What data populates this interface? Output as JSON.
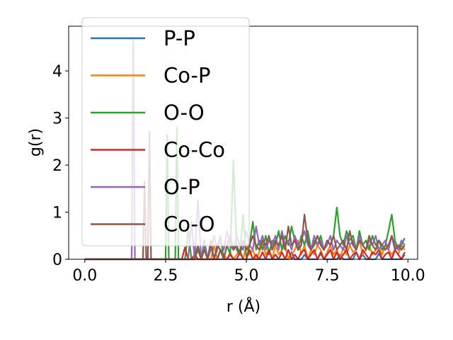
{
  "chart_data": {
    "type": "line",
    "xlabel": "r (Å)",
    "ylabel": "g(r)",
    "xlim": [
      -0.5,
      10.3
    ],
    "ylim": [
      0,
      4.95
    ],
    "x_ticks": [
      0.0,
      2.5,
      5.0,
      7.5,
      10.0
    ],
    "x_tick_labels": [
      "0.0",
      "2.5",
      "5.0",
      "7.5",
      "10.0"
    ],
    "y_ticks": [
      0,
      1,
      2,
      3,
      4
    ],
    "y_tick_labels": [
      "0",
      "1",
      "2",
      "3",
      "4"
    ],
    "grid": false,
    "legend_position": "upper-left",
    "x": [
      0.0,
      0.5,
      1.0,
      1.45,
      1.5,
      1.55,
      1.8,
      1.85,
      1.9,
      1.95,
      2.0,
      2.05,
      2.1,
      2.5,
      2.55,
      2.6,
      2.8,
      2.85,
      2.9,
      3.0,
      3.1,
      3.2,
      3.3,
      3.4,
      3.5,
      3.6,
      3.7,
      3.8,
      3.9,
      4.0,
      4.1,
      4.2,
      4.3,
      4.4,
      4.5,
      4.6,
      4.7,
      4.8,
      4.9,
      5.0,
      5.1,
      5.2,
      5.3,
      5.4,
      5.5,
      5.6,
      5.7,
      5.8,
      5.9,
      6.0,
      6.1,
      6.2,
      6.3,
      6.4,
      6.5,
      6.6,
      6.7,
      6.8,
      6.9,
      7.0,
      7.1,
      7.2,
      7.3,
      7.4,
      7.5,
      7.6,
      7.7,
      7.8,
      7.9,
      8.0,
      8.1,
      8.2,
      8.3,
      8.4,
      8.5,
      8.6,
      8.7,
      8.8,
      8.9,
      9.0,
      9.1,
      9.2,
      9.3,
      9.4,
      9.5,
      9.6,
      9.7,
      9.8,
      9.9
    ],
    "series": [
      {
        "name": "P-P",
        "color": "#1f77b4",
        "values": [
          0,
          0,
          0,
          0,
          0,
          0,
          0,
          0,
          0,
          0,
          0,
          0,
          0,
          0,
          0,
          0,
          0,
          0,
          0,
          0,
          0,
          0,
          0,
          0,
          0,
          0,
          0,
          0,
          0,
          0,
          0,
          0,
          0,
          0,
          0,
          0,
          0,
          0,
          0,
          0,
          0,
          0,
          0,
          0,
          0,
          0,
          0,
          0,
          0,
          0,
          0,
          0,
          0,
          0.15,
          0,
          0,
          0,
          0.1,
          0,
          0,
          0,
          0,
          0.12,
          0,
          0,
          0,
          0,
          0,
          0.1,
          0,
          0,
          0,
          0,
          0.15,
          0,
          0.1,
          0,
          0,
          0,
          0,
          0.12,
          0,
          0,
          0,
          0,
          0,
          0,
          0,
          0.1
        ]
      },
      {
        "name": "Co-P",
        "color": "#ff7f0e",
        "values": [
          0,
          0,
          0,
          0,
          0,
          0,
          0,
          0,
          0,
          0,
          0,
          0,
          0,
          0,
          0,
          0,
          0,
          0,
          0,
          0,
          0,
          0,
          0,
          0,
          0,
          0,
          0,
          0,
          0,
          0.3,
          0,
          0.2,
          0.1,
          0,
          0.15,
          0,
          0.1,
          0.2,
          0,
          0.3,
          0.1,
          0.2,
          0,
          0.15,
          0.35,
          0.1,
          0.2,
          0,
          0.3,
          0.1,
          0.2,
          0.3,
          0,
          0.1,
          0.2,
          0.4,
          0.1,
          0.3,
          0,
          0.2,
          0.1,
          0.3,
          0.2,
          0,
          0.15,
          0.3,
          0.1,
          0.2,
          0,
          0.25,
          0.1,
          0.3,
          0.15,
          0.2,
          0.4,
          0.1,
          0.2,
          0.3,
          0.1,
          0.2,
          0.25,
          0.1,
          0.3,
          0.2,
          0.1,
          0.2,
          0.1,
          0.3,
          0.2
        ]
      },
      {
        "name": "O-O",
        "color": "#2ca02c",
        "values": [
          0,
          0,
          0,
          0,
          0,
          0,
          0,
          0,
          0,
          0,
          0,
          0,
          0,
          0,
          2.65,
          0,
          0,
          2.8,
          0,
          0,
          0,
          0.6,
          0,
          0,
          0.2,
          0,
          0.4,
          0,
          0.3,
          0,
          0.2,
          0.5,
          0,
          0.3,
          0.1,
          2.1,
          0.2,
          0.1,
          0.95,
          0,
          0.3,
          0.8,
          0.2,
          0.4,
          0.2,
          0.5,
          0.1,
          0.4,
          0.3,
          0.6,
          0.2,
          0.5,
          0.3,
          0.7,
          0.4,
          0.2,
          0.5,
          0.3,
          0.6,
          0.2,
          0.4,
          0.3,
          0.5,
          0.2,
          0.4,
          0.3,
          0.5,
          1.1,
          0.5,
          0.3,
          0.6,
          0.4,
          0.5,
          0.2,
          0.6,
          0.3,
          0.4,
          0.2,
          0.5,
          0.3,
          0.4,
          0.2,
          0.3,
          0.6,
          0.95,
          0.4,
          0.2,
          0.3,
          0.45
        ]
      },
      {
        "name": "Co-Co",
        "color": "#d62728",
        "values": [
          0,
          0,
          0,
          0,
          0,
          0,
          0,
          0,
          0,
          0,
          0,
          0,
          0,
          0,
          0,
          0,
          0,
          0,
          0,
          0,
          0.25,
          0,
          0,
          0.1,
          0,
          0,
          0,
          0,
          0,
          0,
          0,
          0.2,
          0,
          0,
          0.1,
          0,
          0,
          0.15,
          0,
          0,
          0.2,
          0,
          0.1,
          0,
          0.15,
          0,
          0.2,
          0,
          0.1,
          0,
          0.15,
          0,
          0.2,
          0,
          0.1,
          0,
          0.15,
          0.2,
          0,
          0.1,
          0.2,
          0,
          0.15,
          0,
          0.1,
          0.2,
          0,
          0.15,
          0,
          0.1,
          0.2,
          0,
          0.1,
          0.15,
          0,
          0.2,
          0.1,
          0,
          0.15,
          0.1,
          0.2,
          0,
          0.1,
          0.15,
          0,
          0.2,
          0.1,
          0,
          0.15
        ]
      },
      {
        "name": "O-P",
        "color": "#9467bd",
        "values": [
          0,
          0,
          0,
          0,
          4.7,
          0,
          0,
          0,
          0,
          0,
          0,
          0,
          0,
          0,
          0,
          0,
          0,
          0,
          0,
          0,
          0,
          0,
          0.8,
          0,
          1.25,
          0,
          0.3,
          0,
          0.2,
          0.5,
          0.2,
          0.4,
          0.2,
          0.6,
          0.3,
          0.2,
          0.5,
          0.3,
          0.2,
          0.6,
          0.3,
          0.2,
          0.7,
          0.3,
          0.5,
          0.2,
          0.4,
          0.3,
          0.5,
          0.2,
          0.6,
          0.3,
          0.4,
          0.2,
          0.5,
          0.3,
          0.4,
          0.6,
          0.3,
          0.2,
          0.5,
          0.3,
          0.4,
          0.2,
          0.3,
          0.5,
          0.2,
          0.4,
          0.3,
          0.2,
          0.5,
          0.3,
          0.4,
          0.2,
          0.5,
          0.3,
          0.2,
          0.4,
          0.3,
          0.5,
          0.2,
          0.3,
          0.4,
          0.2,
          0.5,
          0.3,
          0.2,
          0.4,
          0.3
        ]
      },
      {
        "name": "Co-O",
        "color": "#8c564b",
        "values": [
          0,
          0,
          0,
          0,
          0,
          0,
          0,
          1.65,
          0,
          0,
          2.7,
          0,
          0,
          0,
          0,
          0,
          0,
          0,
          0,
          0,
          0,
          0,
          0,
          0,
          0.3,
          0,
          0.2,
          0,
          0.4,
          0,
          0.3,
          0.2,
          0,
          0.3,
          0.5,
          0.2,
          0.3,
          0.1,
          0.4,
          0.2,
          0.3,
          0.5,
          0.3,
          0.2,
          0.4,
          0.3,
          0.5,
          0.2,
          0.4,
          0.3,
          0.5,
          0.2,
          0.7,
          0.3,
          0.4,
          0.2,
          0.3,
          0.95,
          0.4,
          0.2,
          0.3,
          0.5,
          0.3,
          0.2,
          0.4,
          0.3,
          0.5,
          0.2,
          0.3,
          0.4,
          0.2,
          0.6,
          0.3,
          0.2,
          0.4,
          0.3,
          0.2,
          0.5,
          0.3,
          0.2,
          0.4,
          0.3,
          0.2,
          0.3,
          0.5,
          0.2,
          0.3,
          0.2,
          0.3
        ]
      }
    ]
  }
}
